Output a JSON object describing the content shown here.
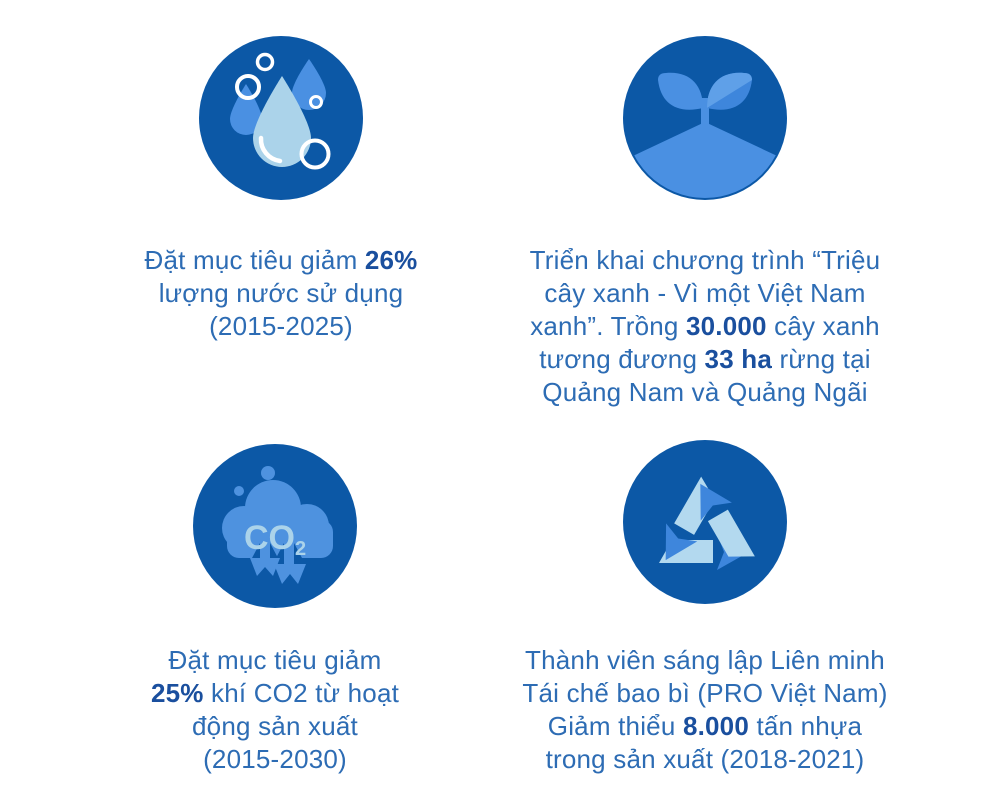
{
  "colors": {
    "circle": "#0C58A6",
    "mid": "#4A90E2",
    "mid2": "#3E86DC",
    "mid3": "#5FA0E8",
    "cloud": "#4E92DF",
    "light": "#ABD3EA",
    "rlight": "#B3D9EF",
    "text": "#2D6CB4",
    "bold": "#1A4F9E",
    "bg": "#FFFFFF",
    "white": "#FFFFFF"
  },
  "icons": {
    "co2_label": "CO",
    "co2_subscript": "2"
  },
  "cards": [
    {
      "icon": "water-drop-icon",
      "lines": [
        [
          {
            "t": "Đặt mục tiêu giảm ",
            "b": false
          },
          {
            "t": "26%",
            "b": true
          }
        ],
        [
          {
            "t": "lượng nước sử dụng",
            "b": false
          }
        ],
        [
          {
            "t": "(2015-2025)",
            "b": false
          }
        ]
      ]
    },
    {
      "icon": "sprout-icon",
      "lines": [
        [
          {
            "t": "Triển khai chương trình “Triệu",
            "b": false
          }
        ],
        [
          {
            "t": "cây xanh - Vì một Việt Nam",
            "b": false
          }
        ],
        [
          {
            "t": "xanh”. Trồng ",
            "b": false
          },
          {
            "t": "30.000",
            "b": true
          },
          {
            "t": " cây xanh",
            "b": false
          }
        ],
        [
          {
            "t": "tương đương ",
            "b": false
          },
          {
            "t": "33 ha",
            "b": true
          },
          {
            "t": " rừng tại",
            "b": false
          }
        ],
        [
          {
            "t": "Quảng Nam và Quảng Ngãi",
            "b": false
          }
        ]
      ]
    },
    {
      "icon": "co2-cloud-icon",
      "lines": [
        [
          {
            "t": "Đặt mục tiêu giảm",
            "b": false
          }
        ],
        [
          {
            "t": "25%",
            "b": true
          },
          {
            "t": " khí CO2 từ hoạt",
            "b": false
          }
        ],
        [
          {
            "t": "động sản xuất",
            "b": false
          }
        ],
        [
          {
            "t": "(2015-2030)",
            "b": false
          }
        ]
      ]
    },
    {
      "icon": "recycle-icon",
      "lines": [
        [
          {
            "t": "Thành viên sáng lập Liên minh",
            "b": false
          }
        ],
        [
          {
            "t": "Tái chế bao bì (PRO Việt Nam)",
            "b": false
          }
        ],
        [
          {
            "t": "Giảm thiểu ",
            "b": false
          },
          {
            "t": "8.000",
            "b": true
          },
          {
            "t": " tấn nhựa",
            "b": false
          }
        ],
        [
          {
            "t": "trong sản xuất (2018-2021)",
            "b": false
          }
        ]
      ]
    }
  ]
}
